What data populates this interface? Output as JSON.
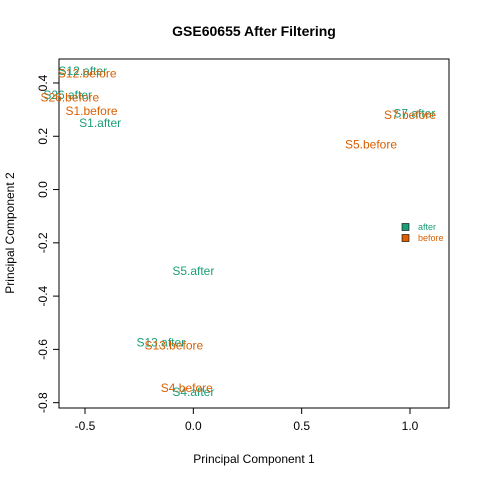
{
  "chart_data": {
    "type": "scatter",
    "title": "GSE60655 After Filtering",
    "xlabel": "Principal Component 1",
    "ylabel": "Principal Component 2",
    "xlim": [
      -0.62,
      1.18
    ],
    "ylim": [
      -0.82,
      0.49
    ],
    "xticks": [
      -0.5,
      0.0,
      0.5,
      1.0
    ],
    "yticks": [
      -0.8,
      -0.6,
      -0.4,
      -0.2,
      0.0,
      0.2,
      0.4
    ],
    "series": [
      {
        "name": "after",
        "color": "#1b9e77",
        "points": [
          {
            "label": "S12.after",
            "x": -0.51,
            "y": 0.445
          },
          {
            "label": "S26.after",
            "x": -0.58,
            "y": 0.355
          },
          {
            "label": "S1.after",
            "x": -0.43,
            "y": 0.25
          },
          {
            "label": "S7.after",
            "x": 1.02,
            "y": 0.285
          },
          {
            "label": "S5.after",
            "x": 0.0,
            "y": -0.305
          },
          {
            "label": "S13.after",
            "x": -0.15,
            "y": -0.575
          },
          {
            "label": "S4.after",
            "x": 0.0,
            "y": -0.76
          }
        ]
      },
      {
        "name": "before",
        "color": "#d95f02",
        "points": [
          {
            "label": "S12.before",
            "x": -0.49,
            "y": 0.435
          },
          {
            "label": "S26.before",
            "x": -0.57,
            "y": 0.345
          },
          {
            "label": "S1.before",
            "x": -0.47,
            "y": 0.295
          },
          {
            "label": "S7.before",
            "x": 1.0,
            "y": 0.28
          },
          {
            "label": "S5.before",
            "x": 0.82,
            "y": 0.17
          },
          {
            "label": "S13.before",
            "x": -0.09,
            "y": -0.585
          },
          {
            "label": "S4.before",
            "x": -0.03,
            "y": -0.745
          }
        ]
      }
    ],
    "legend": {
      "placement": "right",
      "entries": [
        "after",
        "before"
      ]
    },
    "grid": false
  }
}
